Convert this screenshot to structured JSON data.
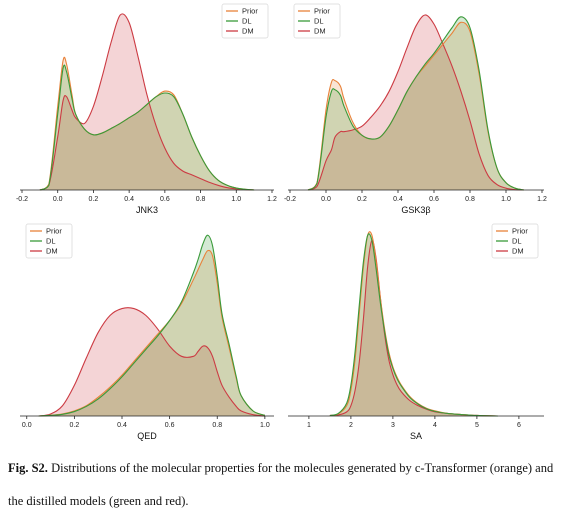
{
  "caption": {
    "label": "Fig. S2.",
    "text": "Distributions of the molecular properties for the molecules generated by c-Transformer (orange) and the distilled models (green and red)."
  },
  "colors": {
    "Prior": "#e8823a",
    "DL": "#3a9a3a",
    "DM": "#cc3b43"
  },
  "chart_data": [
    {
      "type": "area",
      "xlabel": "JNK3",
      "xlim": [
        -0.2,
        1.2
      ],
      "xticks": [
        "-0.2",
        "0.0",
        "0.2",
        "0.4",
        "0.6",
        "0.8",
        "1.0",
        "1.2"
      ],
      "legend": "top-right",
      "x": [
        -0.1,
        -0.05,
        0.0,
        0.03,
        0.05,
        0.08,
        0.1,
        0.15,
        0.2,
        0.25,
        0.3,
        0.35,
        0.4,
        0.45,
        0.5,
        0.55,
        0.6,
        0.65,
        0.7,
        0.75,
        0.8,
        0.85,
        0.9,
        0.95,
        1.0,
        1.05,
        1.1
      ],
      "series": [
        {
          "name": "Prior",
          "values": [
            0,
            0.15,
            2.2,
            3.4,
            3.3,
            2.5,
            2.0,
            1.6,
            1.45,
            1.5,
            1.62,
            1.75,
            1.9,
            2.05,
            2.25,
            2.45,
            2.6,
            2.5,
            2.0,
            1.4,
            0.9,
            0.5,
            0.25,
            0.12,
            0.05,
            0.02,
            0
          ]
        },
        {
          "name": "DL",
          "values": [
            0,
            0.12,
            2.0,
            3.2,
            3.1,
            2.4,
            2.0,
            1.6,
            1.45,
            1.5,
            1.62,
            1.75,
            1.9,
            2.05,
            2.25,
            2.45,
            2.55,
            2.45,
            2.0,
            1.4,
            0.9,
            0.5,
            0.25,
            0.12,
            0.05,
            0.02,
            0
          ]
        },
        {
          "name": "DM",
          "values": [
            0,
            0.12,
            1.4,
            2.35,
            2.45,
            2.1,
            1.9,
            1.75,
            2.2,
            3.0,
            3.9,
            4.6,
            4.4,
            3.5,
            2.5,
            1.7,
            1.1,
            0.7,
            0.5,
            0.4,
            0.3,
            0.2,
            0.12,
            0.06,
            0.03,
            0.01,
            0
          ]
        }
      ]
    },
    {
      "type": "area",
      "xlabel": "GSK3β",
      "xlim": [
        -0.2,
        1.2
      ],
      "xticks": [
        "-0.2",
        "0.0",
        "0.2",
        "0.4",
        "0.6",
        "0.8",
        "1.0",
        "1.2"
      ],
      "legend": "top-left",
      "x": [
        -0.1,
        -0.05,
        0.0,
        0.03,
        0.05,
        0.08,
        0.1,
        0.15,
        0.2,
        0.25,
        0.3,
        0.35,
        0.4,
        0.45,
        0.5,
        0.55,
        0.6,
        0.65,
        0.7,
        0.75,
        0.8,
        0.85,
        0.9,
        0.95,
        1.0,
        1.05,
        1.1
      ],
      "series": [
        {
          "name": "Prior",
          "values": [
            0,
            0.2,
            2.2,
            2.95,
            3.0,
            2.85,
            2.5,
            1.85,
            1.5,
            1.4,
            1.45,
            1.75,
            2.2,
            2.7,
            3.1,
            3.4,
            3.7,
            4.0,
            4.3,
            4.6,
            4.35,
            3.2,
            1.6,
            0.6,
            0.2,
            0.05,
            0
          ]
        },
        {
          "name": "DL",
          "values": [
            0,
            0.18,
            2.0,
            2.7,
            2.75,
            2.6,
            2.3,
            1.75,
            1.5,
            1.4,
            1.45,
            1.75,
            2.2,
            2.7,
            3.1,
            3.45,
            3.75,
            4.1,
            4.45,
            4.75,
            4.45,
            3.3,
            1.65,
            0.6,
            0.2,
            0.05,
            0
          ]
        },
        {
          "name": "DM",
          "values": [
            0,
            0.1,
            0.8,
            1.1,
            1.45,
            1.6,
            1.6,
            1.65,
            1.75,
            2.0,
            2.3,
            2.7,
            3.25,
            3.9,
            4.5,
            4.8,
            4.55,
            4.0,
            3.4,
            2.7,
            1.9,
            1.0,
            0.4,
            0.15,
            0.05,
            0.01,
            0
          ]
        }
      ]
    },
    {
      "type": "area",
      "xlabel": "QED",
      "xlim": [
        -0.02,
        1.03
      ],
      "xticks": [
        "0.0",
        "0.2",
        "0.4",
        "0.6",
        "0.8",
        "1.0"
      ],
      "legend": "top-left",
      "x": [
        0.05,
        0.1,
        0.15,
        0.2,
        0.25,
        0.3,
        0.35,
        0.4,
        0.45,
        0.5,
        0.55,
        0.6,
        0.65,
        0.7,
        0.72,
        0.74,
        0.76,
        0.78,
        0.8,
        0.82,
        0.85,
        0.88,
        0.9,
        0.95,
        1.0
      ],
      "series": [
        {
          "name": "Prior",
          "values": [
            0,
            0.02,
            0.06,
            0.15,
            0.3,
            0.55,
            0.85,
            1.2,
            1.6,
            2.0,
            2.4,
            2.8,
            3.3,
            4.0,
            4.3,
            4.6,
            4.85,
            4.7,
            3.9,
            2.9,
            2.0,
            1.1,
            0.6,
            0.15,
            0.02
          ]
        },
        {
          "name": "DL",
          "values": [
            0,
            0.02,
            0.05,
            0.13,
            0.28,
            0.5,
            0.8,
            1.15,
            1.55,
            1.95,
            2.35,
            2.8,
            3.35,
            4.2,
            4.6,
            5.05,
            5.3,
            5.0,
            4.1,
            3.0,
            2.1,
            1.15,
            0.6,
            0.15,
            0.02
          ]
        },
        {
          "name": "DM",
          "values": [
            0,
            0.06,
            0.3,
            0.9,
            1.7,
            2.45,
            2.95,
            3.15,
            3.15,
            2.95,
            2.55,
            2.05,
            1.75,
            1.75,
            1.9,
            2.05,
            2.0,
            1.75,
            1.3,
            0.9,
            0.55,
            0.28,
            0.15,
            0.04,
            0
          ]
        }
      ]
    },
    {
      "type": "area",
      "xlabel": "SA",
      "xlim": [
        0.55,
        6.55
      ],
      "xticks": [
        "1",
        "2",
        "3",
        "4",
        "5",
        "6"
      ],
      "legend": "top-right",
      "x": [
        1.5,
        1.7,
        1.9,
        2.0,
        2.1,
        2.2,
        2.3,
        2.4,
        2.5,
        2.6,
        2.7,
        2.8,
        2.9,
        3.0,
        3.1,
        3.2,
        3.4,
        3.6,
        3.8,
        4.0,
        4.3,
        4.6,
        5.0,
        5.5
      ],
      "series": [
        {
          "name": "Prior",
          "values": [
            0.01,
            0.04,
            0.2,
            0.5,
            1.1,
            2.0,
            2.9,
            3.5,
            3.5,
            3.0,
            2.3,
            1.7,
            1.25,
            0.95,
            0.75,
            0.6,
            0.38,
            0.24,
            0.15,
            0.1,
            0.05,
            0.03,
            0.01,
            0
          ]
        },
        {
          "name": "DL",
          "values": [
            0.01,
            0.05,
            0.25,
            0.6,
            1.25,
            2.15,
            3.0,
            3.5,
            3.4,
            2.85,
            2.2,
            1.65,
            1.2,
            0.92,
            0.72,
            0.58,
            0.36,
            0.23,
            0.14,
            0.09,
            0.05,
            0.03,
            0.01,
            0
          ]
        },
        {
          "name": "DM",
          "values": [
            0.01,
            0.02,
            0.08,
            0.2,
            0.5,
            1.05,
            1.9,
            2.9,
            3.4,
            3.05,
            2.3,
            1.6,
            1.1,
            0.8,
            0.6,
            0.47,
            0.3,
            0.2,
            0.13,
            0.08,
            0.05,
            0.03,
            0.01,
            0
          ]
        }
      ]
    }
  ]
}
